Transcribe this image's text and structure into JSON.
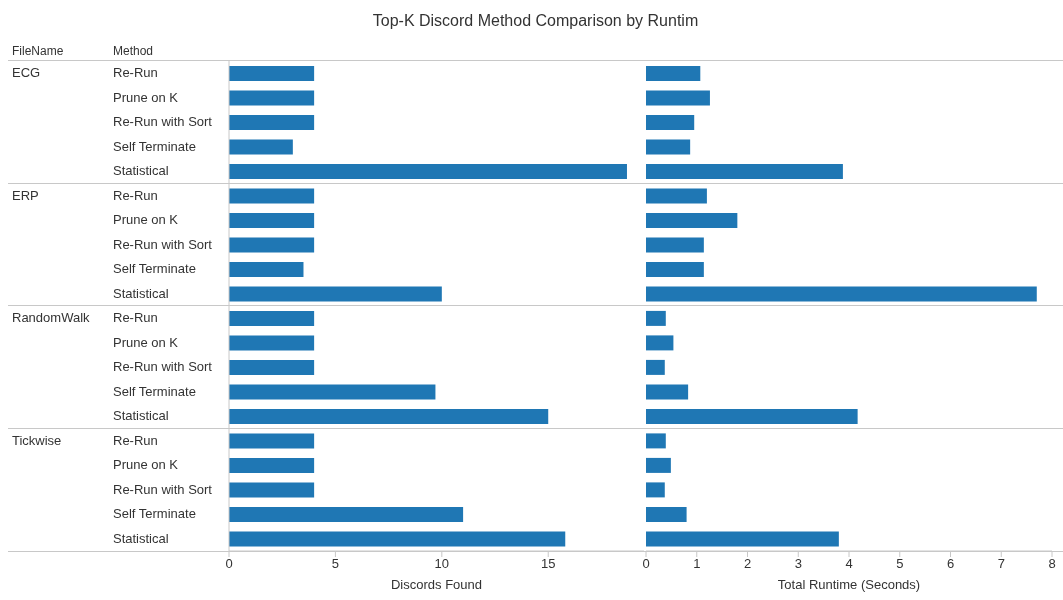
{
  "chart_data": [
    {
      "type": "bar",
      "orientation": "horizontal",
      "title": "Top-K Discord Method Comparison by Runtim",
      "xlabel": "Discords Found",
      "color": "#1f77b4",
      "categories": [
        "Re-Run",
        "Prune on K",
        "Re-Run with Sort",
        "Self Terminate",
        "Statistical",
        "Re-Run",
        "Prune on K",
        "Re-Run with Sort",
        "Self Terminate",
        "Statistical",
        "Re-Run",
        "Prune on K",
        "Re-Run with Sort",
        "Self Terminate",
        "Statistical",
        "Re-Run",
        "Prune on K",
        "Re-Run with Sort",
        "Self Terminate",
        "Statistical"
      ],
      "values": [
        4,
        4,
        4,
        3,
        18.7,
        4,
        4,
        4,
        3.5,
        10,
        4,
        4,
        4,
        9.7,
        15,
        4,
        4,
        4,
        11,
        15.8
      ],
      "xlim": [
        0,
        19.5
      ],
      "xticks": [
        0,
        5,
        10,
        15
      ],
      "grid": false,
      "annotations": [
        "FileName",
        "Method",
        "ECG",
        "ERP",
        "RandomWalk",
        "Tickwise"
      ]
    },
    {
      "type": "bar",
      "orientation": "horizontal",
      "xlabel": "Total Runtime (Seconds)",
      "color": "#1f77b4",
      "categories": [
        null,
        null,
        null,
        null,
        null,
        null,
        null,
        null,
        null,
        null,
        null,
        null,
        null,
        null,
        null,
        null,
        null,
        null,
        null,
        null
      ],
      "values": [
        1.07,
        1.26,
        0.95,
        0.87,
        3.88,
        1.2,
        1.8,
        1.14,
        1.14,
        7.7,
        0.39,
        0.54,
        0.37,
        0.83,
        4.17,
        0.39,
        0.49,
        0.37,
        0.8,
        3.8
      ],
      "xlim": [
        0,
        8
      ],
      "xticks": [
        0,
        1,
        2,
        3,
        4,
        5,
        6,
        7,
        8
      ],
      "grid": false,
      "tick_labels": "x"
    }
  ]
}
